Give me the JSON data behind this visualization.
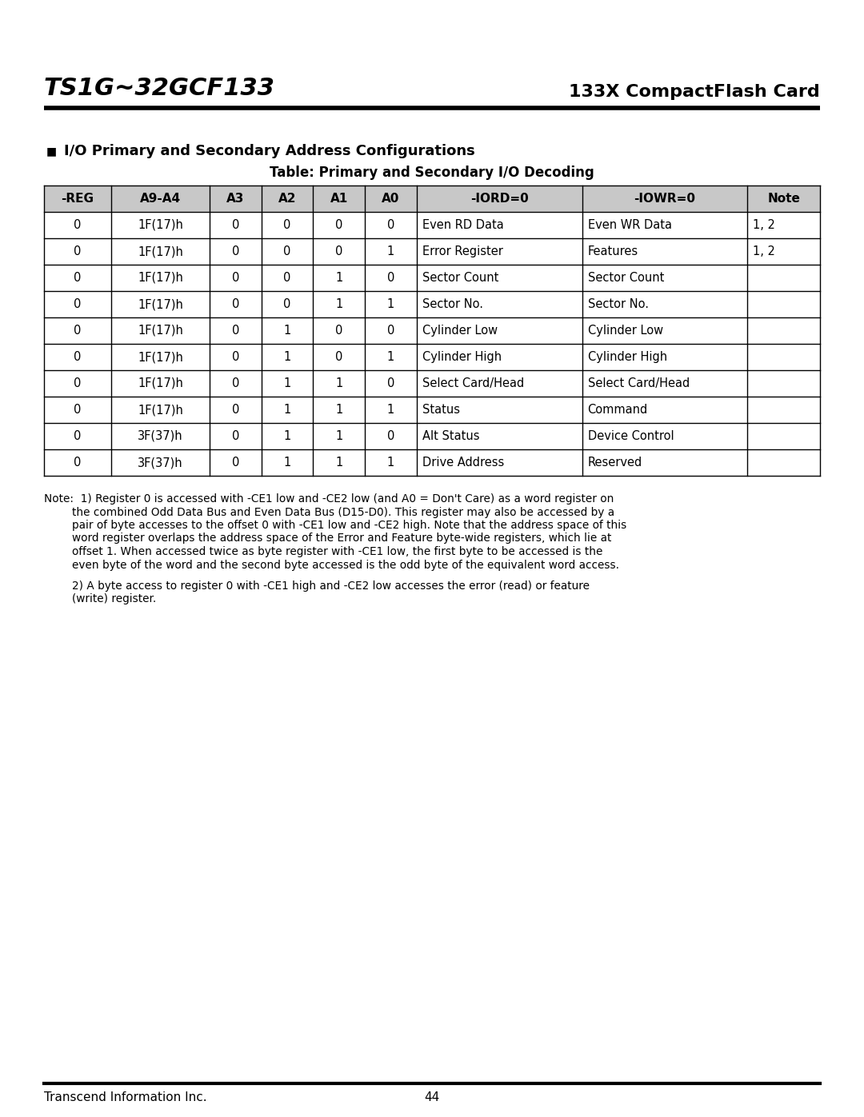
{
  "page_title_left": "TS1G~32GCF133",
  "page_title_right": "133X CompactFlash Card",
  "section_title": "I/O Primary and Secondary Address Configurations",
  "table_title": "Table: Primary and Secondary I/O Decoding",
  "col_headers": [
    "-REG",
    "A9-A4",
    "A3",
    "A2",
    "A1",
    "A0",
    "-IORD=0",
    "-IOWR=0",
    "Note"
  ],
  "table_data": [
    [
      "0",
      "1F(17)h",
      "0",
      "0",
      "0",
      "0",
      "Even RD Data",
      "Even WR Data",
      "1, 2"
    ],
    [
      "0",
      "1F(17)h",
      "0",
      "0",
      "0",
      "1",
      "Error Register",
      "Features",
      "1, 2"
    ],
    [
      "0",
      "1F(17)h",
      "0",
      "0",
      "1",
      "0",
      "Sector Count",
      "Sector Count",
      ""
    ],
    [
      "0",
      "1F(17)h",
      "0",
      "0",
      "1",
      "1",
      "Sector No.",
      "Sector No.",
      ""
    ],
    [
      "0",
      "1F(17)h",
      "0",
      "1",
      "0",
      "0",
      "Cylinder Low",
      "Cylinder Low",
      ""
    ],
    [
      "0",
      "1F(17)h",
      "0",
      "1",
      "0",
      "1",
      "Cylinder High",
      "Cylinder High",
      ""
    ],
    [
      "0",
      "1F(17)h",
      "0",
      "1",
      "1",
      "0",
      "Select Card/Head",
      "Select Card/Head",
      ""
    ],
    [
      "0",
      "1F(17)h",
      "0",
      "1",
      "1",
      "1",
      "Status",
      "Command",
      ""
    ],
    [
      "0",
      "3F(37)h",
      "0",
      "1",
      "1",
      "0",
      "Alt Status",
      "Device Control",
      ""
    ],
    [
      "0",
      "3F(37)h",
      "0",
      "1",
      "1",
      "1",
      "Drive Address",
      "Reserved",
      ""
    ]
  ],
  "note1": "Note:  1) Register 0 is accessed with -CE1 low and -CE2 low (and A0 = Don't Care) as a word register on",
  "note1_lines": [
    "Note:  1) Register 0 is accessed with -CE1 low and -CE2 low (and A0 = Don't Care) as a word register on",
    "        the combined Odd Data Bus and Even Data Bus (D15-D0). This register may also be accessed by a",
    "        pair of byte accesses to the offset 0 with -CE1 low and -CE2 high. Note that the address space of this",
    "        word register overlaps the address space of the Error and Feature byte-wide registers, which lie at",
    "        offset 1. When accessed twice as byte register with -CE1 low, the first byte to be accessed is the",
    "        even byte of the word and the second byte accessed is the odd byte of the equivalent word access."
  ],
  "note2_lines": [
    "        2) A byte access to register 0 with -CE1 high and -CE2 low accesses the error (read) or feature",
    "        (write) register."
  ],
  "footer_left": "Transcend Information Inc.",
  "footer_center": "44",
  "bg_color": "#ffffff",
  "header_bg": "#c8c8c8",
  "border_color": "#000000",
  "text_color": "#000000",
  "col_widths_rel": [
    65,
    95,
    50,
    50,
    50,
    50,
    160,
    160,
    70
  ]
}
